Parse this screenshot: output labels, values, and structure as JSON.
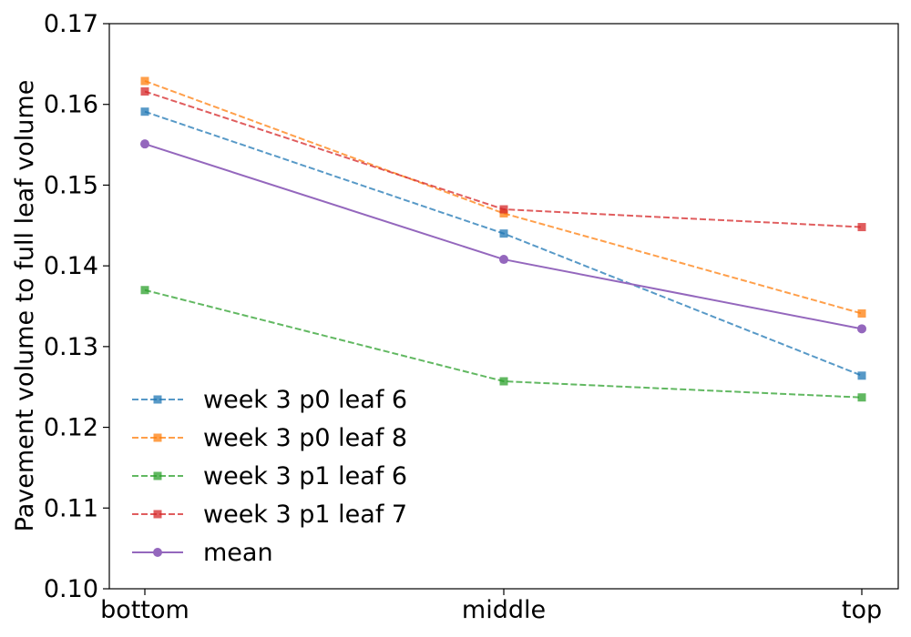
{
  "chart_data": {
    "type": "line",
    "title": "",
    "xlabel": "",
    "ylabel": "Pavement volume to full leaf volume",
    "categories": [
      "bottom",
      "middle",
      "top"
    ],
    "ylim": [
      0.1,
      0.17
    ],
    "yticks": [
      "0.10",
      "0.11",
      "0.12",
      "0.13",
      "0.14",
      "0.15",
      "0.16",
      "0.17"
    ],
    "grid": false,
    "legend_position": "lower-left",
    "series": [
      {
        "name": "week 3 p0 leaf 6",
        "values": [
          0.1591,
          0.144,
          0.1264
        ],
        "color": "#1f77b4",
        "style": "dashed",
        "marker": "square"
      },
      {
        "name": "week 3 p0 leaf 8",
        "values": [
          0.1629,
          0.1465,
          0.1341
        ],
        "color": "#ff7f0e",
        "style": "dashed",
        "marker": "square"
      },
      {
        "name": "week 3 p1 leaf 6",
        "values": [
          0.137,
          0.1257,
          0.1237
        ],
        "color": "#2ca02c",
        "style": "dashed",
        "marker": "square"
      },
      {
        "name": "week 3 p1 leaf 7",
        "values": [
          0.1616,
          0.147,
          0.1448
        ],
        "color": "#d62728",
        "style": "dashed",
        "marker": "square"
      },
      {
        "name": "mean",
        "values": [
          0.1551,
          0.1408,
          0.1322
        ],
        "color": "#9467bd",
        "style": "solid",
        "marker": "circle"
      }
    ]
  }
}
